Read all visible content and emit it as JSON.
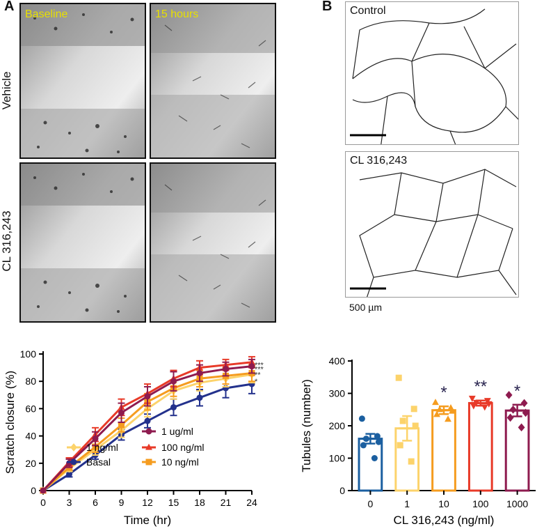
{
  "panel_a": {
    "letter": "A",
    "columns": [
      "Baseline",
      "15 hours"
    ],
    "rows": [
      "Vehicle",
      "CL 316,243"
    ]
  },
  "panel_b": {
    "letter": "B",
    "top_label": "Control",
    "bottom_label": "CL 316,243",
    "scale_bar": "500 µm"
  },
  "chart_data": [
    {
      "type": "line",
      "xlabel": "Time (hr)",
      "ylabel": "Scratch closure (%)",
      "x": [
        0,
        3,
        6,
        9,
        12,
        15,
        18,
        21,
        24
      ],
      "xlim": [
        0,
        24
      ],
      "ylim": [
        0,
        100
      ],
      "xticks": [
        0,
        3,
        6,
        9,
        12,
        15,
        18,
        21,
        24
      ],
      "yticks": [
        0,
        20,
        40,
        60,
        80,
        100
      ],
      "legend_location": "bottom-right",
      "series": [
        {
          "name": "Basal",
          "color": "#23318c",
          "marker": "circle",
          "values": [
            0,
            12,
            26,
            41,
            51,
            61,
            68,
            75,
            78
          ],
          "err": [
            0,
            2,
            3,
            4,
            5,
            6,
            6,
            7,
            7
          ]
        },
        {
          "name": "1 ng/ml",
          "color": "#fcd36b",
          "marker": "diamond",
          "values": [
            0,
            16,
            30,
            44,
            60,
            73,
            79,
            82,
            85
          ],
          "err": [
            0,
            2,
            4,
            5,
            6,
            6,
            6,
            6,
            6
          ]
        },
        {
          "name": "10 ng/ml",
          "color": "#f59c1f",
          "marker": "square",
          "values": [
            0,
            17,
            32,
            48,
            65,
            75,
            82,
            84,
            86
          ],
          "err": [
            0,
            2,
            4,
            5,
            6,
            6,
            6,
            6,
            6
          ]
        },
        {
          "name": "100 ng/ml",
          "color": "#e83a28",
          "marker": "triangle",
          "values": [
            0,
            21,
            41,
            61,
            71,
            82,
            90,
            92,
            94
          ],
          "err": [
            0,
            3,
            5,
            6,
            7,
            6,
            5,
            4,
            4
          ]
        },
        {
          "name": "1 ug/ml",
          "color": "#8e1b4f",
          "marker": "circle",
          "values": [
            0,
            20,
            38,
            57,
            69,
            80,
            86,
            89,
            91
          ],
          "err": [
            0,
            3,
            5,
            7,
            7,
            7,
            6,
            5,
            5
          ]
        }
      ],
      "significance": [
        "***",
        "***",
        "**",
        "*"
      ]
    },
    {
      "type": "bar",
      "xlabel": "CL 316,243 (ng/ml)",
      "ylabel": "Tubules (number)",
      "categories": [
        "0",
        "1",
        "10",
        "100",
        "1000"
      ],
      "values": [
        160,
        192,
        248,
        270,
        247
      ],
      "err": [
        15,
        38,
        12,
        8,
        18
      ],
      "colors": [
        "#1b5fa0",
        "#fcd36b",
        "#f59c1f",
        "#e83a28",
        "#8e1b4f"
      ],
      "markers": [
        "circle",
        "square",
        "triangle",
        "inverted-triangle",
        "diamond"
      ],
      "points": [
        [
          222,
          168,
          160,
          150,
          140,
          100
        ],
        [
          348,
          252,
          215,
          200,
          140,
          90
        ],
        [
          272,
          255,
          250,
          245,
          235,
          220
        ],
        [
          285,
          278,
          272,
          268,
          262,
          258
        ],
        [
          295,
          270,
          250,
          240,
          225,
          195
        ]
      ],
      "significance": [
        "",
        "",
        "*",
        "**",
        "*"
      ],
      "ylim": [
        0,
        400
      ],
      "yticks": [
        0,
        100,
        200,
        300,
        400
      ]
    }
  ]
}
